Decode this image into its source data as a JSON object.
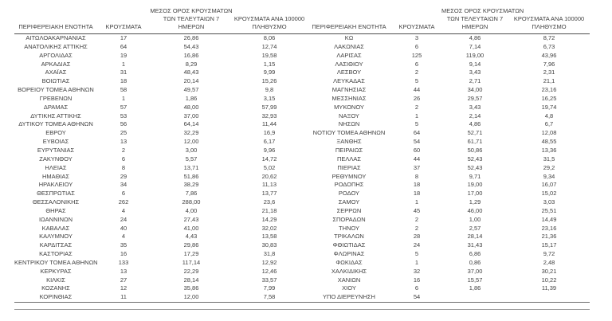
{
  "document": {
    "language": "el",
    "description_colors": {
      "text": "#3f3f3f",
      "header_rule": "#4d4d4d",
      "bottom_rule": "#6e6e6e",
      "footer_rule": "#9a9a9a",
      "background": "#ffffff"
    }
  },
  "table": {
    "headers": {
      "region": "ΠΕΡΙΦΕΡΕΙΑΚΗ ΕΝΟΤΗΤΑ",
      "cases": "ΚΡΟΥΣΜΑΤΑ",
      "avg7_lines": [
        "ΜΕΣΟΣ ΟΡΟΣ ΚΡΟΥΣΜΑΤΩΝ",
        "ΤΩΝ ΤΕΛΕΥΤΑΙΩΝ 7",
        "ΗΜΕΡΩΝ"
      ],
      "per100k_lines": [
        "ΚΡΟΥΣΜΑΤΑ ΑΝΑ 100000",
        "ΠΛΗΘΥΣΜΟ"
      ]
    },
    "rows_left": [
      [
        "ΑΙΤΩΛΟΑΚΑΡΝΑΝΙΑΣ",
        "17",
        "26,86",
        "8,06"
      ],
      [
        "ΑΝΑΤΟΛΙΚΗΣ ΑΤΤΙΚΗΣ",
        "64",
        "54,43",
        "12,74"
      ],
      [
        "ΑΡΓΟΛΙΔΑΣ",
        "19",
        "16,86",
        "19,58"
      ],
      [
        "ΑΡΚΑΔΙΑΣ",
        "1",
        "8,29",
        "1,15"
      ],
      [
        "ΑΧΑΪΑΣ",
        "31",
        "48,43",
        "9,99"
      ],
      [
        "ΒΟΙΩΤΙΑΣ",
        "18",
        "20,14",
        "15,26"
      ],
      [
        "ΒΟΡΕΙΟΥ ΤΟΜΕΑ ΑΘΗΝΩΝ",
        "58",
        "49,57",
        "9,8"
      ],
      [
        "ΓΡΕΒΕΝΩΝ",
        "1",
        "1,86",
        "3,15"
      ],
      [
        "ΔΡΑΜΑΣ",
        "57",
        "48,00",
        "57,99"
      ],
      [
        "ΔΥΤΙΚΗΣ ΑΤΤΙΚΗΣ",
        "53",
        "37,00",
        "32,93"
      ],
      [
        "ΔΥΤΙΚΟΥ ΤΟΜΕΑ ΑΘΗΝΩΝ",
        "56",
        "64,14",
        "11,44"
      ],
      [
        "ΕΒΡΟΥ",
        "25",
        "32,29",
        "16,9"
      ],
      [
        "ΕΥΒΟΙΑΣ",
        "13",
        "12,00",
        "6,17"
      ],
      [
        "ΕΥΡΥΤΑΝΙΑΣ",
        "2",
        "3,00",
        "9,96"
      ],
      [
        "ΖΑΚΥΝΘΟΥ",
        "6",
        "5,57",
        "14,72"
      ],
      [
        "ΗΛΕΙΑΣ",
        "8",
        "13,71",
        "5,02"
      ],
      [
        "ΗΜΑΘΙΑΣ",
        "29",
        "51,86",
        "20,62"
      ],
      [
        "ΗΡΑΚΛΕΙΟΥ",
        "34",
        "38,29",
        "11,13"
      ],
      [
        "ΘΕΣΠΡΩΤΙΑΣ",
        "6",
        "7,86",
        "13,77"
      ],
      [
        "ΘΕΣΣΑΛΟΝΙΚΗΣ",
        "262",
        "288,00",
        "23,6"
      ],
      [
        "ΘΗΡΑΣ",
        "4",
        "4,00",
        "21,18"
      ],
      [
        "ΙΩΑΝΝΙΝΩΝ",
        "24",
        "27,43",
        "14,29"
      ],
      [
        "ΚΑΒΑΛΑΣ",
        "40",
        "41,00",
        "32,02"
      ],
      [
        "ΚΑΛΥΜΝΟΥ",
        "4",
        "4,43",
        "13,58"
      ],
      [
        "ΚΑΡΔΙΤΣΑΣ",
        "35",
        "29,86",
        "30,83"
      ],
      [
        "ΚΑΣΤΟΡΙΑΣ",
        "16",
        "17,29",
        "31,8"
      ],
      [
        "ΚΕΝΤΡΙΚΟΥ ΤΟΜΕΑ ΑΘΗΝΩΝ",
        "133",
        "117,14",
        "12,92"
      ],
      [
        "ΚΕΡΚΥΡΑΣ",
        "13",
        "22,29",
        "12,46"
      ],
      [
        "ΚΙΛΚΙΣ",
        "27",
        "28,14",
        "33,57"
      ],
      [
        "ΚΟΖΑΝΗΣ",
        "12",
        "35,86",
        "7,99"
      ],
      [
        "ΚΟΡΙΝΘΙΑΣ",
        "11",
        "12,00",
        "7,58"
      ]
    ],
    "rows_right": [
      [
        "ΚΩ",
        "3",
        "4,86",
        "8,72"
      ],
      [
        "ΛΑΚΩΝΙΑΣ",
        "6",
        "7,14",
        "6,73"
      ],
      [
        "ΛΑΡΙΣΑΣ",
        "125",
        "119,00",
        "43,96"
      ],
      [
        "ΛΑΣΙΘΙΟΥ",
        "6",
        "9,14",
        "7,96"
      ],
      [
        "ΛΕΣΒΟΥ",
        "2",
        "3,43",
        "2,31"
      ],
      [
        "ΛΕΥΚΑΔΑΣ",
        "5",
        "2,71",
        "21,1"
      ],
      [
        "ΜΑΓΝΗΣΙΑΣ",
        "44",
        "34,00",
        "23,16"
      ],
      [
        "ΜΕΣΣΗΝΙΑΣ",
        "26",
        "29,57",
        "16,25"
      ],
      [
        "ΜΥΚΟΝΟΥ",
        "2",
        "3,43",
        "19,74"
      ],
      [
        "ΝΑΞΟΥ",
        "1",
        "2,14",
        "4,8"
      ],
      [
        "ΝΗΣΩΝ",
        "5",
        "4,86",
        "6,7"
      ],
      [
        "ΝΟΤΙΟΥ ΤΟΜΕΑ ΑΘΗΝΩΝ",
        "64",
        "52,71",
        "12,08"
      ],
      [
        "ΞΑΝΘΗΣ",
        "54",
        "61,71",
        "48,55"
      ],
      [
        "ΠΕΙΡΑΙΩΣ",
        "60",
        "50,86",
        "13,36"
      ],
      [
        "ΠΕΛΛΑΣ",
        "44",
        "52,43",
        "31,5"
      ],
      [
        "ΠΙΕΡΙΑΣ",
        "37",
        "52,43",
        "29,2"
      ],
      [
        "ΡΕΘΥΜΝΟΥ",
        "8",
        "9,71",
        "9,34"
      ],
      [
        "ΡΟΔΟΠΗΣ",
        "18",
        "19,00",
        "16,07"
      ],
      [
        "ΡΟΔΟΥ",
        "18",
        "17,00",
        "15,02"
      ],
      [
        "ΣΑΜΟΥ",
        "1",
        "1,29",
        "3,03"
      ],
      [
        "ΣΕΡΡΩΝ",
        "45",
        "46,00",
        "25,51"
      ],
      [
        "ΣΠΟΡΑΔΩΝ",
        "2",
        "1,00",
        "14,49"
      ],
      [
        "ΤΗΝΟΥ",
        "2",
        "2,57",
        "23,16"
      ],
      [
        "ΤΡΙΚΑΛΩΝ",
        "28",
        "28,14",
        "21,36"
      ],
      [
        "ΦΘΙΩΤΙΔΑΣ",
        "24",
        "31,43",
        "15,17"
      ],
      [
        "ΦΛΩΡΙΝΑΣ",
        "5",
        "6,86",
        "9,72"
      ],
      [
        "ΦΩΚΙΔΑΣ",
        "1",
        "0,86",
        "2,48"
      ],
      [
        "ΧΑΛΚΙΔΙΚΗΣ",
        "32",
        "37,00",
        "30,21"
      ],
      [
        "ΧΑΝΙΩΝ",
        "16",
        "15,57",
        "10,22"
      ],
      [
        "ΧΙΟΥ",
        "6",
        "1,86",
        "11,39"
      ],
      [
        "ΥΠΟ ΔΙΕΡΕΥΝΗΣΗ",
        "54",
        "",
        ""
      ]
    ]
  }
}
